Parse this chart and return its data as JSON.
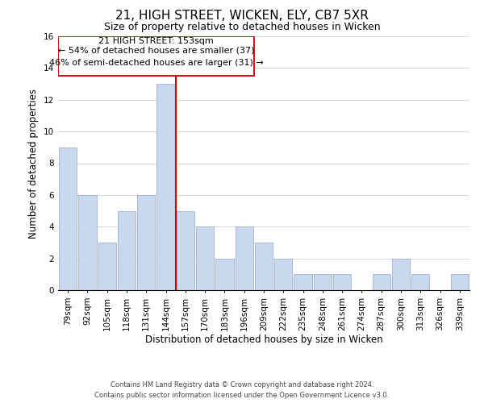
{
  "title_line1": "21, HIGH STREET, WICKEN, ELY, CB7 5XR",
  "title_line2": "Size of property relative to detached houses in Wicken",
  "xlabel": "Distribution of detached houses by size in Wicken",
  "ylabel": "Number of detached properties",
  "bar_labels": [
    "79sqm",
    "92sqm",
    "105sqm",
    "118sqm",
    "131sqm",
    "144sqm",
    "157sqm",
    "170sqm",
    "183sqm",
    "196sqm",
    "209sqm",
    "222sqm",
    "235sqm",
    "248sqm",
    "261sqm",
    "274sqm",
    "287sqm",
    "300sqm",
    "313sqm",
    "326sqm",
    "339sqm"
  ],
  "bar_values": [
    9,
    6,
    3,
    5,
    6,
    13,
    5,
    4,
    2,
    4,
    3,
    2,
    1,
    1,
    1,
    0,
    1,
    2,
    1,
    0,
    1
  ],
  "bar_color": "#c8d8ef",
  "bar_edge_color": "#a0b0cc",
  "highlight_line_color": "#cc0000",
  "annotation_text_line1": "21 HIGH STREET: 153sqm",
  "annotation_text_line2": "← 54% of detached houses are smaller (37)",
  "annotation_text_line3": "46% of semi-detached houses are larger (31) →",
  "ylim": [
    0,
    16
  ],
  "yticks": [
    0,
    2,
    4,
    6,
    8,
    10,
    12,
    14,
    16
  ],
  "background_color": "#ffffff",
  "grid_color": "#d0d8ea",
  "footer_line1": "Contains HM Land Registry data © Crown copyright and database right 2024.",
  "footer_line2": "Contains public sector information licensed under the Open Government Licence v3.0.",
  "title_fontsize": 11,
  "subtitle_fontsize": 9,
  "axis_label_fontsize": 8.5,
  "tick_fontsize": 7.5,
  "annotation_fontsize": 8,
  "footer_fontsize": 6
}
